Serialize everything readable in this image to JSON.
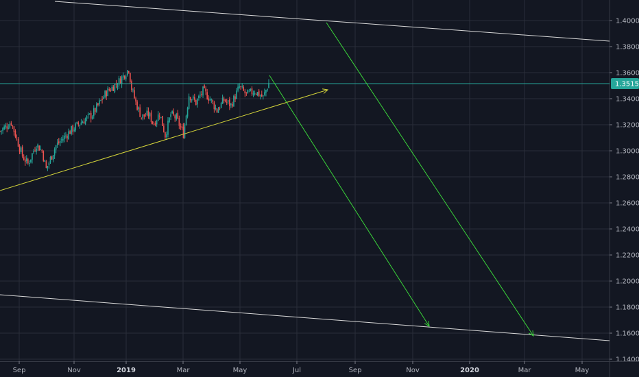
{
  "chart_data": {
    "type": "candlestick",
    "last_price": "1.35156",
    "y_ticks": [
      "1.40000",
      "1.38000",
      "1.36000",
      "1.34000",
      "1.32000",
      "1.30000",
      "1.28000",
      "1.26000",
      "1.24000",
      "1.22000",
      "1.20000",
      "1.18000",
      "1.16000",
      "1.14000"
    ],
    "x_ticks": [
      {
        "label": "Sep",
        "bold": false
      },
      {
        "label": "Nov",
        "bold": false
      },
      {
        "label": "2019",
        "bold": true
      },
      {
        "label": "Mar",
        "bold": false
      },
      {
        "label": "May",
        "bold": false
      },
      {
        "label": "Jul",
        "bold": false
      },
      {
        "label": "Sep",
        "bold": false
      },
      {
        "label": "Nov",
        "bold": false
      },
      {
        "label": "2020",
        "bold": true
      },
      {
        "label": "Mar",
        "bold": false
      },
      {
        "label": "May",
        "bold": false
      }
    ],
    "ylim": [
      1.138,
      1.413
    ],
    "grid": true,
    "colors": {
      "background": "#131722",
      "grid": "#2a2e39",
      "up_candle": "#26a69a",
      "down_candle": "#ef5350",
      "trendline_support": "#d4d43a",
      "projection_arrows": "#3ad43a",
      "channel_lines": "#d9d9d9",
      "price_line": "#26a69a",
      "price_badge": "#26a69a"
    },
    "drawings": [
      {
        "name": "upper-channel-line",
        "kind": "line",
        "from": [
          1.4148
        ],
        "to": [
          1.3835
        ]
      },
      {
        "name": "lower-channel-line",
        "kind": "line",
        "from": [
          1.1893
        ],
        "to": [
          1.1533
        ]
      },
      {
        "name": "rising-support-line",
        "kind": "arrow"
      },
      {
        "name": "projection-arrow-1",
        "kind": "arrow",
        "from": [
          1.3565
        ],
        "to": [
          1.1655
        ]
      },
      {
        "name": "projection-arrow-2",
        "kind": "arrow",
        "from": [
          1.3985
        ],
        "to": [
          1.158
        ]
      }
    ],
    "anchor_points": [
      {
        "t": 0,
        "p": 1.315
      },
      {
        "t": 8,
        "p": 1.322
      },
      {
        "t": 16,
        "p": 1.296
      },
      {
        "t": 20,
        "p": 1.29
      },
      {
        "t": 26,
        "p": 1.305
      },
      {
        "t": 30,
        "p": 1.3
      },
      {
        "t": 33,
        "p": 1.286
      },
      {
        "t": 40,
        "p": 1.304
      },
      {
        "t": 50,
        "p": 1.315
      },
      {
        "t": 58,
        "p": 1.322
      },
      {
        "t": 66,
        "p": 1.328
      },
      {
        "t": 76,
        "p": 1.345
      },
      {
        "t": 84,
        "p": 1.352
      },
      {
        "t": 92,
        "p": 1.363
      },
      {
        "t": 94,
        "p": 1.348
      },
      {
        "t": 97,
        "p": 1.337
      },
      {
        "t": 101,
        "p": 1.326
      },
      {
        "t": 106,
        "p": 1.328
      },
      {
        "t": 110,
        "p": 1.321
      },
      {
        "t": 114,
        "p": 1.329
      },
      {
        "t": 118,
        "p": 1.312
      },
      {
        "t": 122,
        "p": 1.328
      },
      {
        "t": 126,
        "p": 1.325
      },
      {
        "t": 131,
        "p": 1.313
      },
      {
        "t": 135,
        "p": 1.343
      },
      {
        "t": 140,
        "p": 1.337
      },
      {
        "t": 145,
        "p": 1.346
      },
      {
        "t": 150,
        "p": 1.34
      },
      {
        "t": 155,
        "p": 1.331
      },
      {
        "t": 160,
        "p": 1.339
      },
      {
        "t": 165,
        "p": 1.335
      },
      {
        "t": 171,
        "p": 1.349
      },
      {
        "t": 176,
        "p": 1.343
      },
      {
        "t": 182,
        "p": 1.346
      },
      {
        "t": 188,
        "p": 1.341
      },
      {
        "t": 192,
        "p": 1.352
      }
    ]
  }
}
